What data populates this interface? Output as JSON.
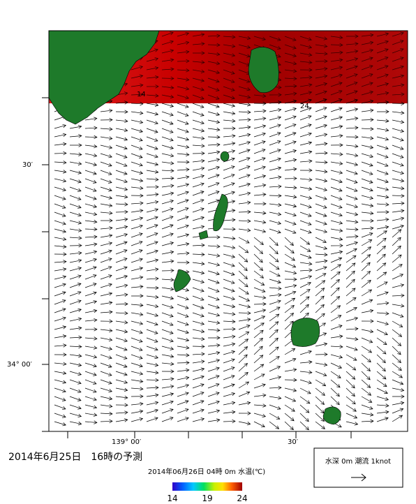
{
  "title": "2014年6月25日　16時の予測",
  "subtitle": "2014年06月26日 04時 0m 水温(℃)",
  "lat_labels": [
    "30′",
    "34° 00′"
  ],
  "lon_labels": [
    "139° 00′",
    "30′"
  ],
  "contour_labels": [
    "24",
    "14"
  ],
  "colorbar": {
    "range": [
      14,
      24
    ],
    "ticks": [
      14,
      19,
      24
    ]
  },
  "legend": "水深 0m 潮流 1knot"
}
